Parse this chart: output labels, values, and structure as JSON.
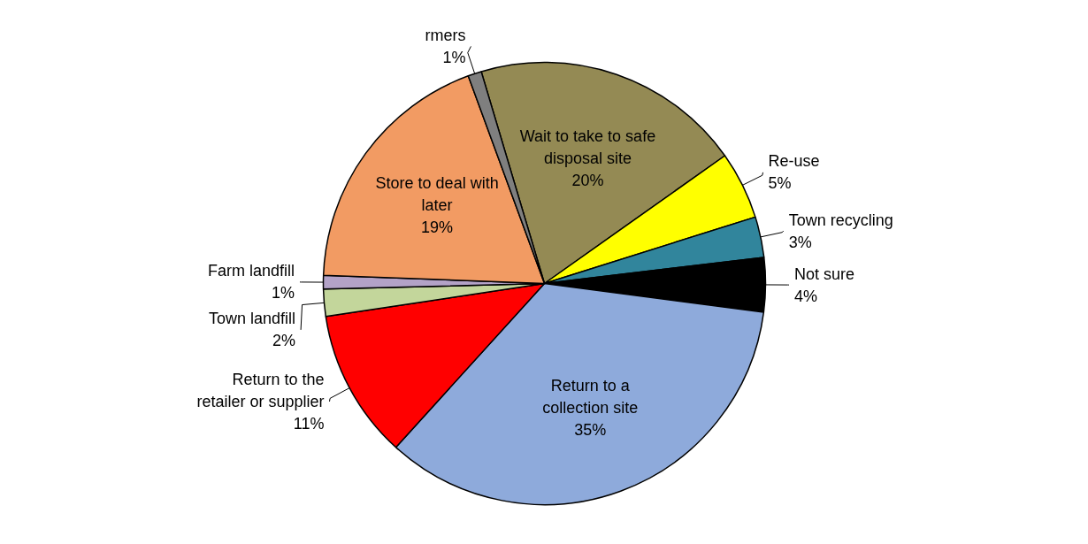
{
  "chart_data": {
    "type": "pie",
    "categories": [
      "Wait to take to safe disposal site",
      "Re-use",
      "Town recycling",
      "Not sure",
      "Return to a collection site",
      "Return to the retailer or supplier",
      "Town landfill",
      "Farm landfill",
      "Store to deal with later",
      "rmers"
    ],
    "values": [
      20,
      5,
      3,
      4,
      35,
      11,
      2,
      1,
      19,
      1
    ],
    "colors": [
      "#948a54",
      "#ffff00",
      "#31859c",
      "#000000",
      "#8eaadb",
      "#ff0000",
      "#c3d69b",
      "#b3a2c7",
      "#f29b63",
      "#7f7f7f"
    ],
    "value_labels": [
      "20%",
      "5%",
      "3%",
      "4%",
      "35%",
      "11%",
      "2%",
      "1%",
      "19%",
      "1%"
    ]
  }
}
